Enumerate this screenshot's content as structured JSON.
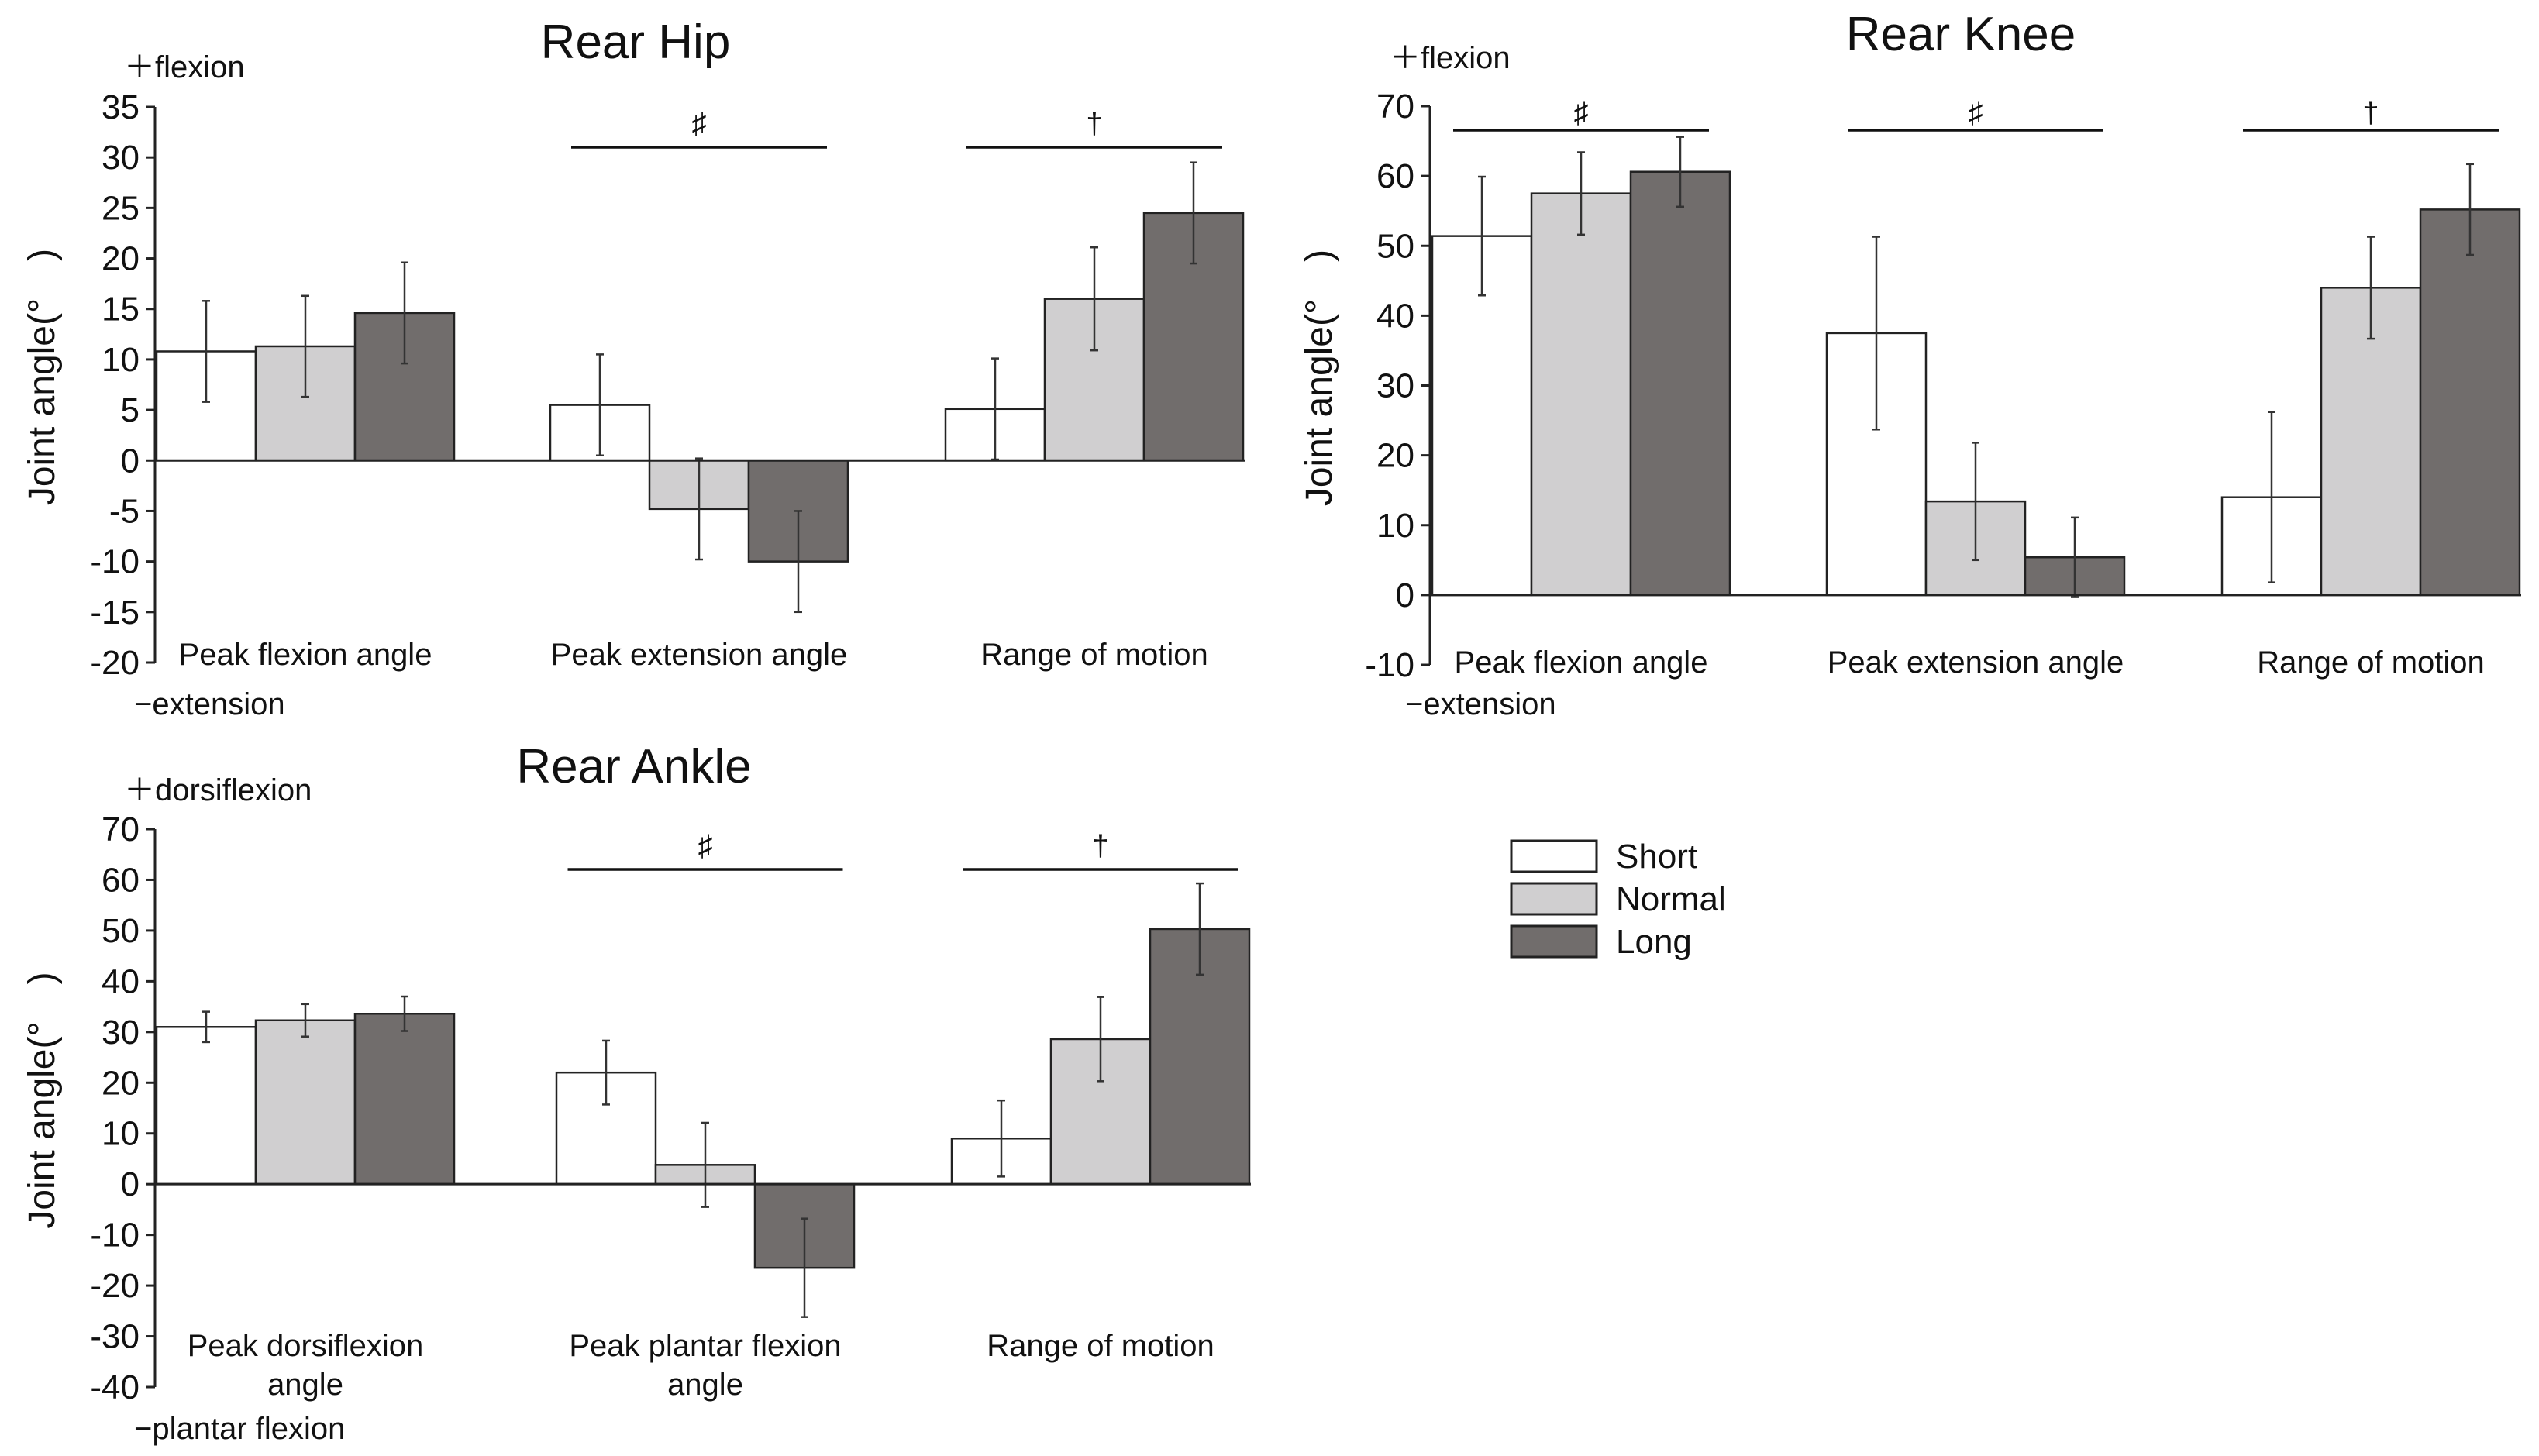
{
  "colors": {
    "short": "#ffffff",
    "normal": "#d0cfd0",
    "long": "#716d6c",
    "edge": "#222222"
  },
  "legend": {
    "short": "Short",
    "normal": "Normal",
    "long": "Long"
  },
  "chart_data": [
    {
      "type": "bar",
      "title": "Rear Hip",
      "ylabel": "Joint angle(°　)",
      "pos_label": "＋flexion",
      "neg_label": "−extension",
      "ylim": [
        -20,
        35
      ],
      "yticks": [
        35,
        30,
        25,
        20,
        15,
        10,
        5,
        0,
        -5,
        -10,
        -15,
        -20
      ],
      "categories": [
        [
          "Peak flexion angle"
        ],
        [
          "Peak extension angle"
        ],
        [
          "Range of motion"
        ]
      ],
      "series": [
        {
          "name": "Short",
          "values": [
            10.8,
            5.5,
            5.1
          ],
          "errors": [
            5.0,
            5.0,
            5.0
          ]
        },
        {
          "name": "Normal",
          "values": [
            11.3,
            -4.8,
            16.0
          ],
          "errors": [
            5.0,
            5.0,
            5.1
          ]
        },
        {
          "name": "Long",
          "values": [
            14.6,
            -10.0,
            24.5
          ],
          "errors": [
            5.0,
            5.0,
            5.0
          ]
        }
      ],
      "significance": [
        {
          "category": 1,
          "symbol": "♯"
        },
        {
          "category": 2,
          "symbol": "†"
        }
      ]
    },
    {
      "type": "bar",
      "title": "Rear Knee",
      "ylabel": "Joint angle(°　)",
      "pos_label": "＋flexion",
      "neg_label": "−extension",
      "ylim": [
        -10,
        70
      ],
      "yticks": [
        70,
        60,
        50,
        40,
        30,
        20,
        10,
        0,
        -10
      ],
      "categories": [
        [
          "Peak flexion angle"
        ],
        [
          "Peak extension angle"
        ],
        [
          "Range of motion"
        ]
      ],
      "series": [
        {
          "name": "Short",
          "values": [
            51.4,
            37.5,
            14.0
          ],
          "errors": [
            8.5,
            13.8,
            12.2
          ]
        },
        {
          "name": "Normal",
          "values": [
            57.5,
            13.4,
            44.0
          ],
          "errors": [
            5.9,
            8.4,
            7.3
          ]
        },
        {
          "name": "Long",
          "values": [
            60.6,
            5.4,
            55.2
          ],
          "errors": [
            5.0,
            5.7,
            6.5
          ]
        }
      ],
      "significance": [
        {
          "category": 0,
          "symbol": "♯"
        },
        {
          "category": 1,
          "symbol": "♯"
        },
        {
          "category": 2,
          "symbol": "†"
        }
      ]
    },
    {
      "type": "bar",
      "title": "Rear Ankle",
      "ylabel": "Joint angle(°　)",
      "pos_label": "＋dorsiflexion",
      "neg_label": "−plantar flexion",
      "ylim": [
        -40,
        70
      ],
      "yticks": [
        70,
        60,
        50,
        40,
        30,
        20,
        10,
        0,
        -10,
        -20,
        -30,
        -40
      ],
      "categories": [
        [
          "Peak dorsiflexion",
          "angle"
        ],
        [
          "Peak plantar flexion",
          "angle"
        ],
        [
          "Range of motion"
        ]
      ],
      "series": [
        {
          "name": "Short",
          "values": [
            31.0,
            22.0,
            9.0
          ],
          "errors": [
            3.0,
            6.3,
            7.5
          ]
        },
        {
          "name": "Normal",
          "values": [
            32.3,
            3.8,
            28.6
          ],
          "errors": [
            3.2,
            8.3,
            8.3
          ]
        },
        {
          "name": "Long",
          "values": [
            33.6,
            -16.5,
            50.3
          ],
          "errors": [
            3.4,
            9.7,
            9.0
          ]
        }
      ],
      "significance": [
        {
          "category": 1,
          "symbol": "♯"
        },
        {
          "category": 2,
          "symbol": "†"
        }
      ]
    }
  ]
}
